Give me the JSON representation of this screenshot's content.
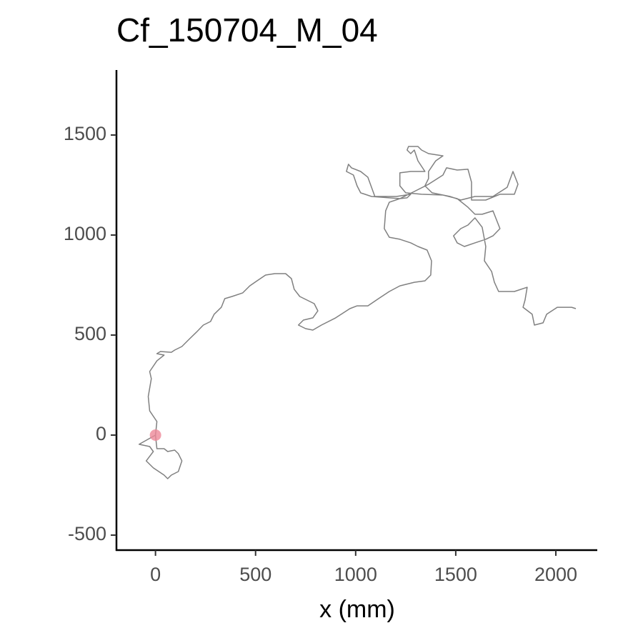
{
  "chart_data": {
    "type": "line",
    "title": "Cf_150704_M_04",
    "x_label": "x (mm)",
    "x": [
      0,
      -82,
      -29,
      -11,
      -46,
      -11,
      43,
      61,
      79,
      114,
      132,
      114,
      96,
      61,
      43,
      7,
      0,
      7,
      -29,
      -36,
      -21,
      -29,
      7,
      43,
      7,
      25,
      79,
      96,
      132,
      168,
      204,
      239,
      275,
      293,
      329,
      346,
      382,
      436,
      471,
      507,
      550,
      596,
      650,
      679,
      693,
      721,
      757,
      793,
      811,
      786,
      739,
      714,
      750,
      786,
      829,
      900,
      971,
      1007,
      1061,
      1114,
      1168,
      1221,
      1293,
      1346,
      1375,
      1379,
      1357,
      1311,
      1275,
      1221,
      1168,
      1143,
      1150,
      1168,
      1221,
      1257,
      1275,
      1204,
      1150,
      1096,
      1079,
      1061,
      1025,
      979,
      964,
      954,
      989,
      1007,
      1025,
      1079,
      1221,
      1293,
      1364,
      1436,
      1454,
      1507,
      1561,
      1579,
      1579,
      1650,
      1721,
      1793,
      1811,
      1786,
      1757,
      1686,
      1596,
      1525,
      1471,
      1382,
      1346,
      1364,
      1364,
      1400,
      1436,
      1364,
      1329,
      1311,
      1264,
      1257,
      1275,
      1293,
      1311,
      1346,
      1275,
      1221,
      1221,
      1250,
      1329,
      1436,
      1507,
      1561,
      1596,
      1632,
      1686,
      1721,
      1686,
      1650,
      1596,
      1543,
      1507,
      1489,
      1525,
      1561,
      1596,
      1632,
      1650,
      1643,
      1679,
      1693,
      1714,
      1793,
      1857,
      1846,
      1836,
      1882,
      1893,
      1936,
      1954,
      2007,
      2079,
      2100
    ],
    "values": [
      0,
      -46,
      -57,
      -82,
      -129,
      -164,
      -200,
      -218,
      -200,
      -182,
      -129,
      -93,
      -75,
      -82,
      -68,
      -68,
      0,
      68,
      121,
      193,
      282,
      318,
      371,
      400,
      407,
      418,
      414,
      425,
      443,
      479,
      514,
      550,
      568,
      604,
      639,
      682,
      693,
      711,
      746,
      771,
      800,
      807,
      807,
      782,
      729,
      693,
      675,
      657,
      621,
      586,
      575,
      550,
      532,
      525,
      550,
      586,
      632,
      646,
      646,
      682,
      718,
      746,
      764,
      771,
      800,
      871,
      925,
      943,
      961,
      979,
      989,
      1032,
      1121,
      1164,
      1182,
      1186,
      1204,
      1193,
      1193,
      1193,
      1239,
      1289,
      1318,
      1336,
      1354,
      1318,
      1300,
      1246,
      1211,
      1193,
      1182,
      1218,
      1254,
      1300,
      1336,
      1325,
      1329,
      1264,
      1175,
      1175,
      1204,
      1204,
      1254,
      1318,
      1239,
      1193,
      1193,
      1175,
      1193,
      1211,
      1246,
      1282,
      1318,
      1371,
      1396,
      1407,
      1425,
      1443,
      1443,
      1425,
      1407,
      1425,
      1371,
      1318,
      1318,
      1311,
      1246,
      1211,
      1204,
      1200,
      1182,
      1139,
      1104,
      1104,
      1121,
      1032,
      996,
      979,
      961,
      943,
      961,
      996,
      1032,
      1050,
      1086,
      1039,
      943,
      871,
      818,
      764,
      718,
      718,
      739,
      675,
      639,
      604,
      550,
      561,
      604,
      639,
      639,
      632
    ],
    "color": "#808080",
    "points": {
      "x": [
        0
      ],
      "y": [
        0
      ],
      "color": "#ee8899"
    },
    "xlim": [
      -195,
      2207
    ],
    "ylim": [
      -575,
      1825
    ],
    "xticks": [
      0,
      500,
      1000,
      1500,
      2000
    ],
    "yticks": [
      -500,
      0,
      500,
      1000,
      1500
    ]
  }
}
